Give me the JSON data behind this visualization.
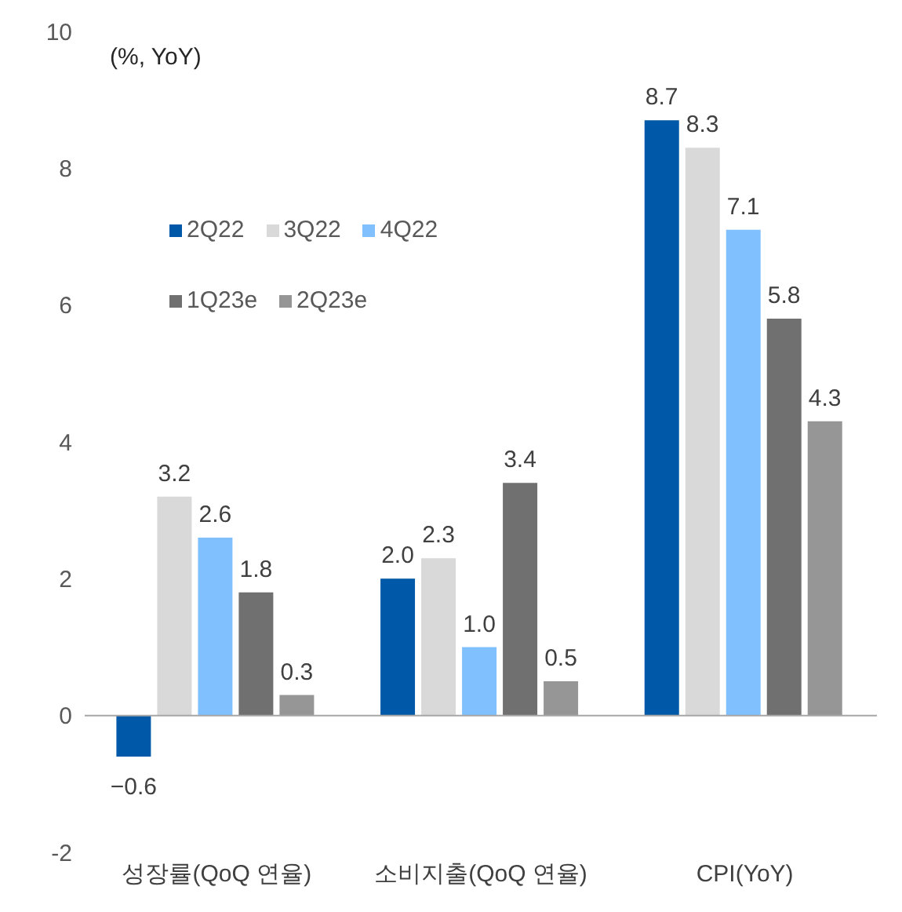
{
  "chart_data": {
    "type": "bar",
    "categories": [
      "성장률(QoQ 연율)",
      "소비지출(QoQ 연율)",
      "CPI(YoY)"
    ],
    "series": [
      {
        "name": "2Q22",
        "color": "#0058a8",
        "values": [
          -0.6,
          2.0,
          8.7
        ],
        "value_labels": [
          "−0.6",
          "2.0",
          "8.7"
        ]
      },
      {
        "name": "3Q22",
        "color": "#d9d9d9",
        "values": [
          3.2,
          2.3,
          8.3
        ],
        "value_labels": [
          "3.2",
          "2.3",
          "8.3"
        ]
      },
      {
        "name": "4Q22",
        "color": "#80c0ff",
        "values": [
          2.6,
          1.0,
          7.1
        ],
        "value_labels": [
          "2.6",
          "1.0",
          "7.1"
        ]
      },
      {
        "name": "1Q23e",
        "color": "#707070",
        "values": [
          1.8,
          3.4,
          5.8
        ],
        "value_labels": [
          "1.8",
          "3.4",
          "5.8"
        ]
      },
      {
        "name": "2Q23e",
        "color": "#969696",
        "values": [
          0.3,
          0.5,
          4.3
        ],
        "value_labels": [
          "0.3",
          "0.5",
          "4.3"
        ]
      }
    ],
    "ref_lines": [
      {
        "axis": "y",
        "value": 0,
        "color": "#a6a6a6"
      }
    ],
    "ylim": [
      -2,
      10
    ],
    "yticks": [
      -2,
      0,
      2,
      4,
      6,
      8,
      10
    ],
    "legend": "top left",
    "annotations": [
      "(%, YoY)"
    ]
  }
}
